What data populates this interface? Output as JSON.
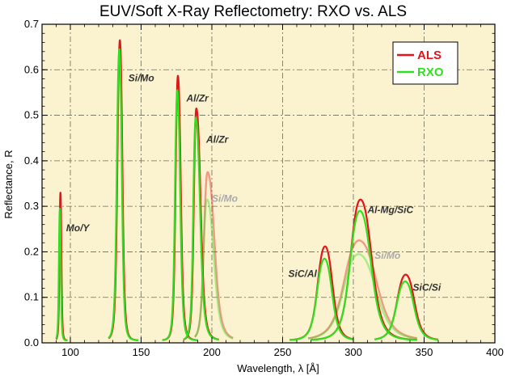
{
  "chart_data": {
    "type": "line",
    "title": "EUV/Soft X-Ray Reflectometry: RXO vs. ALS",
    "xlabel": "Wavelength, λ [Å]",
    "ylabel": "Reflectance, R",
    "xlim": [
      80,
      400
    ],
    "ylim": [
      0,
      0.7
    ],
    "xticks": [
      100,
      150,
      200,
      250,
      300,
      350,
      400
    ],
    "yticks": [
      0.0,
      0.1,
      0.2,
      0.3,
      0.4,
      0.5,
      0.6,
      0.7
    ],
    "xtick_labels": [
      "100",
      "150",
      "200",
      "250",
      "300",
      "350",
      "400"
    ],
    "ytick_labels": [
      "0.0",
      "0.1",
      "0.2",
      "0.3",
      "0.4",
      "0.5",
      "0.6",
      "0.7"
    ],
    "grid": true,
    "legend_position": "top-right",
    "background_color": "#fbf3cf",
    "series": [
      {
        "name": "ALS",
        "color": "#e3151a"
      },
      {
        "name": "RXO",
        "color": "#2ee01e"
      }
    ],
    "peaks": [
      {
        "label": "Mo/Y",
        "center": 93,
        "width_left": 0.8,
        "width_right": 0.8,
        "x_range": [
          90,
          98
        ],
        "als_peak": 0.325,
        "rxo_peak": 0.29,
        "faded": false,
        "label_x": 97,
        "label_y": 0.245
      },
      {
        "label": "Si/Mo",
        "center": 135,
        "width_left": 2.0,
        "width_right": 2.0,
        "x_range": [
          127,
          148
        ],
        "als_peak": 0.66,
        "rxo_peak": 0.64,
        "faded": false,
        "label_x": 141,
        "label_y": 0.575
      },
      {
        "label": "Al/Zr",
        "center": 176,
        "width_left": 1.9,
        "width_right": 2.3,
        "x_range": [
          165,
          190
        ],
        "als_peak": 0.582,
        "rxo_peak": 0.55,
        "faded": false,
        "label_x": 182,
        "label_y": 0.53
      },
      {
        "label": "Al/Zr",
        "center": 189,
        "width_left": 2.0,
        "width_right": 3.5,
        "x_range": [
          180,
          205
        ],
        "als_peak": 0.51,
        "rxo_peak": 0.49,
        "faded": false,
        "label_x": 196,
        "label_y": 0.44
      },
      {
        "label": "Si/Mo",
        "center": 197,
        "width_left": 3.0,
        "width_right": 5.5,
        "x_range": [
          188,
          215
        ],
        "als_peak": 0.37,
        "rxo_peak": 0.31,
        "faded": true,
        "label_x": 200,
        "label_y": 0.31
      },
      {
        "label": "SiC/Al",
        "center": 280,
        "width_left": 6.0,
        "width_right": 6.0,
        "x_range": [
          255,
          300
        ],
        "als_peak": 0.207,
        "rxo_peak": 0.18,
        "faded": false,
        "label_x": 254,
        "label_y": 0.145
      },
      {
        "label": "Al-Mg/SiC",
        "center": 305,
        "width_left": 8.0,
        "width_right": 9.0,
        "x_range": [
          270,
          345
        ],
        "als_peak": 0.31,
        "rxo_peak": 0.285,
        "faded": false,
        "label_x": 310,
        "label_y": 0.285
      },
      {
        "label": "Si/Mo",
        "center": 304,
        "width_left": 12.0,
        "width_right": 14.0,
        "x_range": [
          268,
          345
        ],
        "als_peak": 0.22,
        "rxo_peak": 0.19,
        "faded": true,
        "label_x": 315,
        "label_y": 0.185
      },
      {
        "label": "SiC/Si",
        "center": 337,
        "width_left": 7.0,
        "width_right": 7.0,
        "x_range": [
          315,
          360
        ],
        "als_peak": 0.145,
        "rxo_peak": 0.13,
        "faded": false,
        "label_x": 342,
        "label_y": 0.115
      }
    ]
  }
}
